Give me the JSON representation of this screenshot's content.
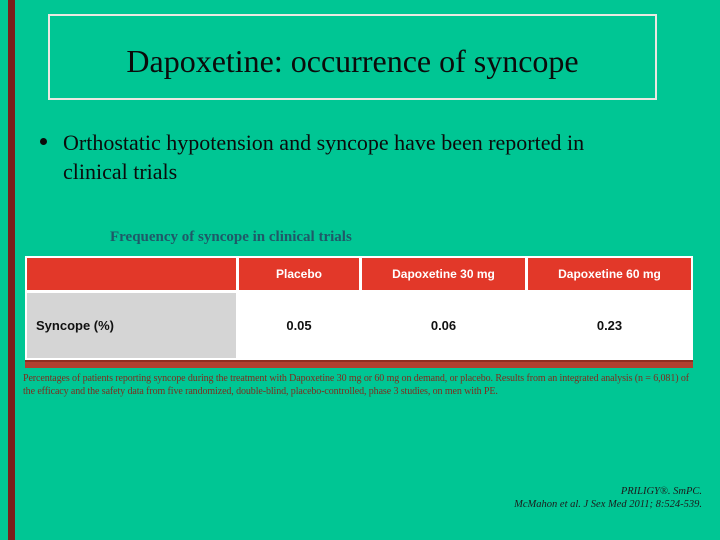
{
  "slide": {
    "title": "Dapoxetine: occurrence of syncope",
    "bullet_text": "Orthostatic hypotension and syncope have been reported in clinical trials",
    "table_title": "Frequency of syncope in clinical trials",
    "table": {
      "header": [
        "",
        "Placebo",
        "Dapoxetine 30 mg",
        "Dapoxetine 60 mg"
      ],
      "row_label": "Syncope (%)",
      "row_values": [
        "0.05",
        "0.06",
        "0.23"
      ]
    },
    "footnote": "Percentages of patients reporting syncope during the treatment with Dapoxetine 30 mg or 60 mg on demand, or placebo. Results from an integrated analysis (n = 6,081) of the efficacy and the safety data from five randomized, double-blind, placebo-controlled, phase 3 studies, on men with PE.",
    "citation": {
      "line1": "PRILIGY®. SmPC.",
      "line2": "McMahon et al. J Sex Med 2011; 8:524-539."
    },
    "colors": {
      "background": "#00C694",
      "left_bar": "#7B1E1A",
      "header_red": "#E23829",
      "bottom_bar": "#B04030",
      "row_label_bg": "#D5D5D5",
      "table_title_text": "#1F5968",
      "footnote_text": "#7E2D1E"
    }
  }
}
